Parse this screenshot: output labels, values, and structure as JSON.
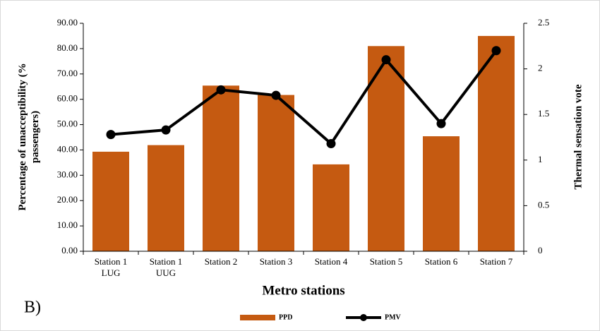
{
  "chart_data": {
    "type": "bar_line",
    "panel_label": "B)",
    "x_label": "Metro stations",
    "y_label": "Percentage of unacceptibility (%\npassengers)",
    "y2_label": "Thermal sensation vote",
    "categories": [
      "Station 1\nLUG",
      "Station 1\nUUG",
      "Station 2",
      "Station 3",
      "Station 4",
      "Station 5",
      "Station 6",
      "Station 7"
    ],
    "series": [
      {
        "name": "PPD",
        "type": "bar",
        "color": "#c55a11",
        "values": [
          39.3,
          41.9,
          65.4,
          61.7,
          34.3,
          81.0,
          45.4,
          85.0
        ]
      },
      {
        "name": "PMV",
        "type": "line",
        "axis": "y2",
        "color": "#000000",
        "values": [
          1.28,
          1.33,
          1.77,
          1.71,
          1.18,
          2.1,
          1.4,
          2.2
        ]
      }
    ],
    "ylim": [
      0,
      90
    ],
    "yticks": [
      {
        "value": 0,
        "label": "0.00"
      },
      {
        "value": 10,
        "label": "10.00"
      },
      {
        "value": 20,
        "label": "20.00"
      },
      {
        "value": 30,
        "label": "30.00"
      },
      {
        "value": 40,
        "label": "40.00"
      },
      {
        "value": 50,
        "label": "50.00"
      },
      {
        "value": 60,
        "label": "60.00"
      },
      {
        "value": 70,
        "label": "70.00"
      },
      {
        "value": 80,
        "label": "80.00"
      },
      {
        "value": 90,
        "label": "90.00"
      }
    ],
    "y2lim": [
      0,
      2.5
    ],
    "y2ticks": [
      0,
      0.5,
      1,
      1.5,
      2,
      2.5
    ],
    "legend": "bottom"
  }
}
